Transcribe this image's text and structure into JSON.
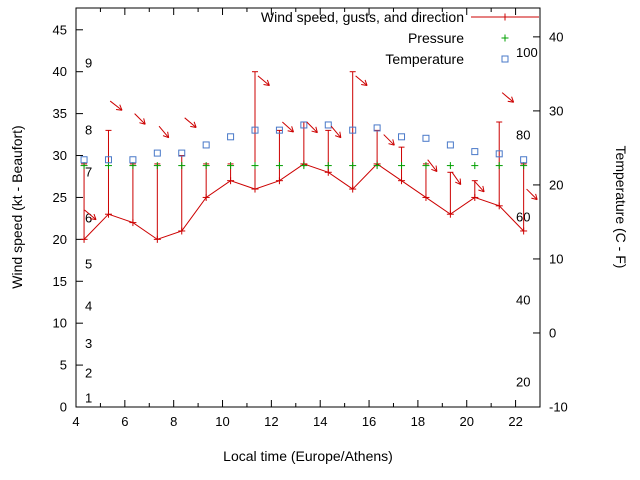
{
  "chart_data": {
    "type": "line",
    "title": "",
    "xlabel": "Local time (Europe/Athens)",
    "ylabel_left": "Wind speed (kt - Beaufort)",
    "ylabel_right": "Temperature (C - F)",
    "x_axis": {
      "lim": [
        4,
        23
      ],
      "major_ticks": [
        4,
        6,
        8,
        10,
        12,
        14,
        16,
        18,
        20,
        22
      ],
      "minor_tick_every_hour": true
    },
    "left_axis": {
      "lim": [
        0,
        47.6
      ],
      "ticks": [
        0,
        5,
        10,
        15,
        20,
        25,
        30,
        35,
        40,
        45
      ],
      "beaufort_inner_labels": [
        {
          "label": "1",
          "kt": 1
        },
        {
          "label": "2",
          "kt": 4
        },
        {
          "label": "3",
          "kt": 7.5
        },
        {
          "label": "4",
          "kt": 12
        },
        {
          "label": "5",
          "kt": 17
        },
        {
          "label": "6",
          "kt": 22.5
        },
        {
          "label": "7",
          "kt": 28
        },
        {
          "label": "8",
          "kt": 33
        },
        {
          "label": "9",
          "kt": 41
        }
      ]
    },
    "right_axis": {
      "lim_c": [
        -10,
        43.9
      ],
      "ticks_c": [
        -10,
        0,
        10,
        20,
        30,
        40
      ],
      "fahrenheit_inner_labels": [
        {
          "label": "20",
          "c": -6.7
        },
        {
          "label": "40",
          "c": 4.4
        },
        {
          "label": "60",
          "c": 15.6
        },
        {
          "label": "80",
          "c": 26.7
        },
        {
          "label": "100",
          "c": 37.8
        }
      ]
    },
    "legend": [
      {
        "label": "Wind speed, gusts, and direction",
        "series": "wind",
        "marker": "plus-line"
      },
      {
        "label": "Pressure",
        "series": "pressure",
        "marker": "plus"
      },
      {
        "label": "Temperature",
        "series": "temperature",
        "marker": "open-square"
      }
    ],
    "colors": {
      "wind": "#cc0000",
      "pressure": "#00a000",
      "temperature": "#4878c8",
      "axis": "#000000"
    },
    "series": {
      "hours": [
        4.33,
        5.33,
        6.33,
        7.33,
        8.33,
        9.33,
        10.33,
        11.33,
        12.33,
        13.33,
        14.33,
        15.33,
        16.33,
        17.33,
        18.33,
        19.33,
        20.33,
        21.33,
        22.33
      ],
      "wind_kt": [
        20,
        23,
        22,
        20,
        21,
        25,
        27,
        26,
        27,
        29,
        28,
        26,
        29,
        27,
        25,
        23,
        25,
        24,
        21
      ],
      "gust_kt": [
        29,
        33,
        29,
        29,
        30,
        29,
        29,
        40,
        33,
        34,
        33,
        40,
        33,
        31,
        29,
        28,
        27,
        34,
        29
      ],
      "pressure_y_kt_axis": 28.8,
      "temperature_c": [
        23.4,
        23.4,
        23.4,
        24.3,
        24.3,
        25.4,
        26.5,
        27.4,
        27.4,
        28.1,
        28.1,
        27.4,
        27.7,
        26.5,
        26.3,
        25.4,
        24.5,
        24.2,
        23.4
      ],
      "wind_direction_arrows": [
        {
          "hour": 4.35,
          "kt": 23.5,
          "angle_deg": -40
        },
        {
          "hour": 5.4,
          "kt": 36.5,
          "angle_deg": -38
        },
        {
          "hour": 6.4,
          "kt": 35,
          "angle_deg": -45
        },
        {
          "hour": 7.4,
          "kt": 33.5,
          "angle_deg": -50
        },
        {
          "hour": 8.45,
          "kt": 34.5,
          "angle_deg": -40
        },
        {
          "hour": 11.45,
          "kt": 39.5,
          "angle_deg": -40
        },
        {
          "hour": 12.45,
          "kt": 34,
          "angle_deg": -42
        },
        {
          "hour": 13.45,
          "kt": 34,
          "angle_deg": -45
        },
        {
          "hour": 14.45,
          "kt": 33.5,
          "angle_deg": -50
        },
        {
          "hour": 15.45,
          "kt": 39.5,
          "angle_deg": -40
        },
        {
          "hour": 16.6,
          "kt": 32.5,
          "angle_deg": -45
        },
        {
          "hour": 18.4,
          "kt": 29.5,
          "angle_deg": -52
        },
        {
          "hour": 19.4,
          "kt": 28,
          "angle_deg": -55
        },
        {
          "hour": 20.3,
          "kt": 27,
          "angle_deg": -48
        },
        {
          "hour": 21.45,
          "kt": 37.5,
          "angle_deg": -40
        },
        {
          "hour": 22.45,
          "kt": 26,
          "angle_deg": -45
        }
      ]
    }
  }
}
